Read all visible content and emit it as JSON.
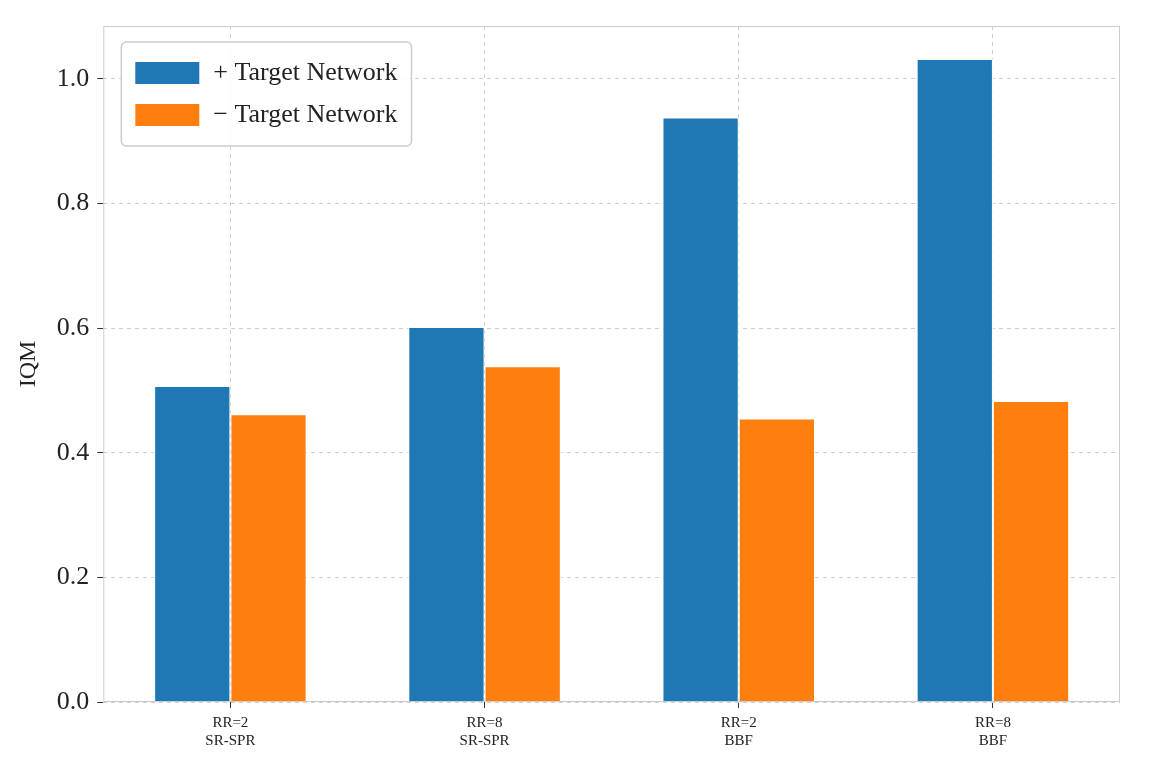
{
  "chart_data": {
    "type": "bar",
    "y_label": "IQM",
    "categories": [
      "RR=2\nSR-SPR",
      "RR=8\nSR-SPR",
      "RR=2\nBBF",
      "RR=8\nBBF"
    ],
    "series": [
      {
        "name": "+ Target Network",
        "color": "#1f77b4",
        "values": [
          0.507,
          0.602,
          0.938,
          1.032
        ]
      },
      {
        "name": "− Target Network",
        "color": "#ff7f0e",
        "values": [
          0.462,
          0.539,
          0.455,
          0.483
        ]
      }
    ],
    "ylim": [
      0,
      1.085
    ],
    "yticks": [
      {
        "value": 0,
        "label": "0.0"
      },
      0.2,
      0.4,
      0.6,
      0.8,
      {
        "value": 1,
        "label": "1.0"
      }
    ],
    "grid": true,
    "legend": "upper left"
  }
}
